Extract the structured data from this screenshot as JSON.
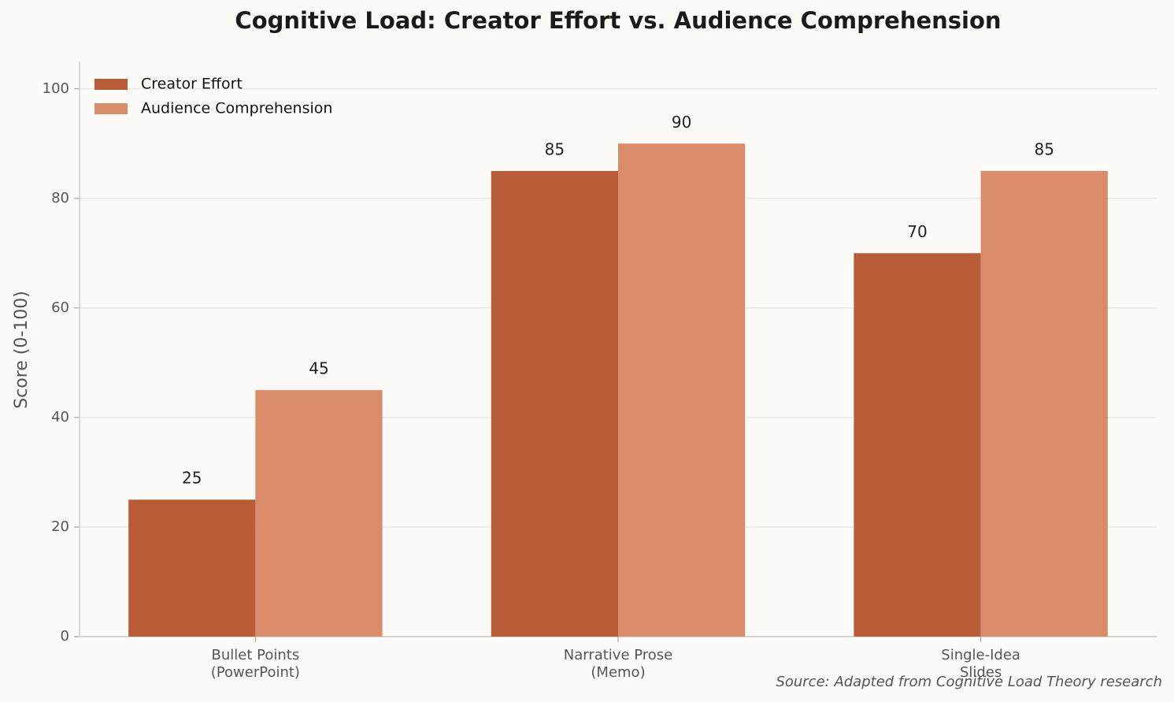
{
  "chart_data": {
    "type": "bar",
    "title": "Cognitive Load: Creator Effort vs. Audience Comprehension",
    "ylabel": "Score (0-100)",
    "source": "Source: Adapted from Cognitive Load Theory research",
    "categories": [
      "Bullet Points\n(PowerPoint)",
      "Narrative Prose\n(Memo)",
      "Single-Idea\nSlides"
    ],
    "series": [
      {
        "name": "Creator Effort",
        "color": "#b85c38",
        "values": [
          25,
          85,
          70
        ]
      },
      {
        "name": "Audience Comprehension",
        "color": "#d98b6a",
        "values": [
          45,
          90,
          85
        ]
      }
    ],
    "ylim": [
      0,
      105
    ],
    "yticks": [
      0,
      20,
      40,
      60,
      80,
      100
    ],
    "grid": true,
    "legend": "upper left"
  }
}
